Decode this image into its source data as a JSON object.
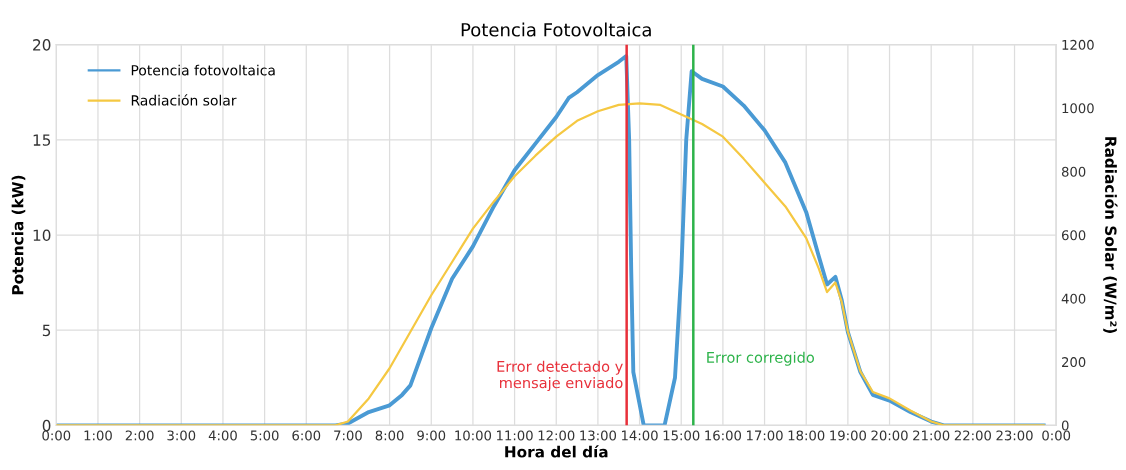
{
  "chart_data": {
    "type": "line",
    "title": "Potencia Fotovoltaica",
    "xlabel": "Hora del día",
    "ylabel": "Potencia (kW)",
    "y2label": "Radiación Solar (W/m²)",
    "xlim": [
      0,
      24
    ],
    "xticks": [
      {
        "value": 0,
        "label": "0:00"
      },
      {
        "value": 1,
        "label": "1:00"
      },
      {
        "value": 2,
        "label": "2:00"
      },
      {
        "value": 3,
        "label": "3:00"
      },
      {
        "value": 4,
        "label": "4:00"
      },
      {
        "value": 5,
        "label": "5:00"
      },
      {
        "value": 6,
        "label": "6:00"
      },
      {
        "value": 7,
        "label": "7:00"
      },
      {
        "value": 8,
        "label": "8:00"
      },
      {
        "value": 9,
        "label": "9:00"
      },
      {
        "value": 10,
        "label": "10:00"
      },
      {
        "value": 11,
        "label": "11:00"
      },
      {
        "value": 12,
        "label": "12:00"
      },
      {
        "value": 13,
        "label": "13:00"
      },
      {
        "value": 14,
        "label": "14:00"
      },
      {
        "value": 15,
        "label": "15:00"
      },
      {
        "value": 16,
        "label": "16:00"
      },
      {
        "value": 17,
        "label": "17:00"
      },
      {
        "value": 18,
        "label": "18:00"
      },
      {
        "value": 19,
        "label": "19:00"
      },
      {
        "value": 20,
        "label": "20:00"
      },
      {
        "value": 21,
        "label": "21:00"
      },
      {
        "value": 22,
        "label": "22:00"
      },
      {
        "value": 23,
        "label": "23:00"
      },
      {
        "value": 24,
        "label": "0:00"
      }
    ],
    "ylim": [
      0,
      20
    ],
    "yticks": [
      0,
      5,
      10,
      15,
      20
    ],
    "y2lim": [
      0,
      1200
    ],
    "y2ticks": [
      0,
      200,
      400,
      600,
      800,
      1000,
      1200
    ],
    "grid": true,
    "legend": "top left",
    "marker": "none",
    "line_style": "solid",
    "series": [
      {
        "name": "Potencia fotovoltaica",
        "color": "#4a9ad4",
        "x": [
          0,
          6.7,
          7.0,
          7.5,
          8.0,
          8.3,
          8.5,
          9.0,
          9.5,
          10.0,
          10.5,
          11.0,
          11.5,
          12.0,
          12.3,
          12.5,
          13.0,
          13.5,
          13.68,
          13.75,
          13.8,
          13.85,
          14.1,
          14.6,
          14.85,
          15.0,
          15.12,
          15.25,
          15.5,
          16.0,
          16.5,
          17.0,
          17.5,
          18.0,
          18.3,
          18.5,
          18.7,
          18.85,
          19.0,
          19.3,
          19.6,
          20.0,
          20.5,
          21.0,
          21.3,
          23.7
        ],
        "values": [
          0,
          0,
          0.1,
          0.7,
          1.05,
          1.6,
          2.1,
          5.1,
          7.7,
          9.4,
          11.5,
          13.4,
          14.8,
          16.2,
          17.2,
          17.5,
          18.4,
          19.1,
          19.4,
          15.0,
          8.1,
          2.8,
          0,
          0,
          2.5,
          8,
          15,
          18.6,
          18.2,
          17.8,
          16.8,
          15.5,
          13.8,
          11.2,
          8.9,
          7.4,
          7.8,
          6.6,
          4.9,
          2.8,
          1.6,
          1.3,
          0.7,
          0.2,
          0,
          0
        ]
      },
      {
        "name": "Radiación solar",
        "color": "#f5c842",
        "axis": "y2",
        "x": [
          0,
          6.7,
          7.0,
          7.5,
          8.0,
          8.5,
          9.0,
          9.5,
          10.0,
          10.5,
          11.0,
          11.5,
          12.0,
          12.5,
          13.0,
          13.5,
          14.0,
          14.5,
          15.0,
          15.25,
          15.5,
          16.0,
          16.5,
          17.0,
          17.5,
          18.0,
          18.3,
          18.5,
          18.7,
          18.85,
          19.0,
          19.3,
          19.6,
          20.0,
          20.5,
          21.0,
          21.3,
          23.7
        ],
        "values": [
          0,
          0,
          12,
          85,
          180,
          295,
          410,
          515,
          620,
          705,
          785,
          850,
          910,
          960,
          990,
          1010,
          1015,
          1010,
          980,
          965,
          950,
          910,
          840,
          765,
          690,
          590,
          495,
          420,
          450,
          390,
          295,
          170,
          105,
          85,
          47,
          12,
          0,
          0
        ]
      }
    ],
    "ref_lines": [
      {
        "axis": "x",
        "value": 13.69,
        "label": "Error detectado y\nmensaje enviado",
        "color": "#e8303a"
      },
      {
        "axis": "x",
        "value": 15.29,
        "label": "Error corregido",
        "color": "#2db34a"
      }
    ]
  }
}
